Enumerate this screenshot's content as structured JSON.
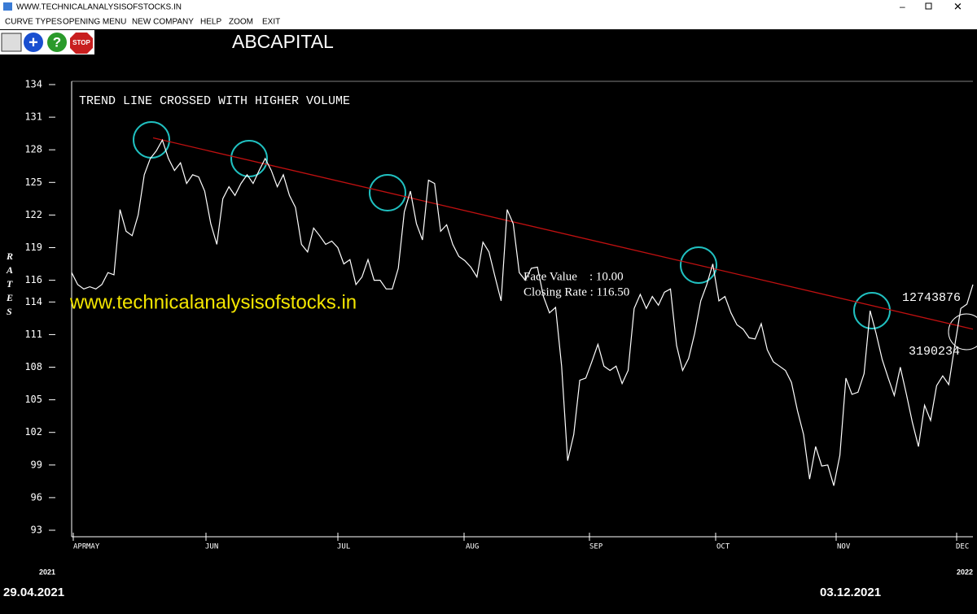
{
  "window": {
    "title": "WWW.TECHNICALANALYSISOFSTOCKS.IN"
  },
  "menu": [
    "CURVE TYPES",
    "OPENING MENU",
    "NEW COMPANY",
    "HELP",
    "ZOOM",
    "EXIT"
  ],
  "chart_data": {
    "type": "line",
    "title": "ABCAPITAL",
    "annotation": "TREND LINE CROSSED WITH HIGHER VOLUME",
    "ylabel": "RATES",
    "ylim": [
      93,
      134
    ],
    "yticks": [
      134,
      131,
      128,
      125,
      122,
      119,
      116,
      114,
      111,
      108,
      105,
      102,
      99,
      96,
      93
    ],
    "x_labels": [
      "APR",
      "MAY",
      "JUN",
      "JUL",
      "AUG",
      "SEP",
      "OCT",
      "NOV",
      "DEC"
    ],
    "color": "#ffffff",
    "values": [
      116.7,
      115.6,
      115.2,
      115.4,
      115.2,
      115.6,
      116.7,
      116.5,
      122.5,
      120.5,
      120.1,
      122.0,
      125.7,
      127.2,
      127.9,
      128.9,
      127.2,
      126.1,
      126.8,
      124.9,
      125.7,
      125.5,
      124.2,
      121.2,
      119.3,
      123.5,
      124.6,
      123.8,
      124.9,
      125.7,
      124.9,
      126.1,
      127.2,
      126.1,
      124.6,
      125.7,
      123.8,
      122.7,
      119.3,
      118.6,
      120.8,
      120.1,
      119.3,
      119.6,
      119.0,
      117.5,
      117.9,
      115.6,
      116.3,
      117.9,
      116.0,
      116.0,
      115.2,
      115.2,
      117.1,
      122.3,
      124.2,
      121.2,
      119.7,
      125.2,
      124.9,
      120.5,
      121.1,
      119.3,
      118.2,
      117.8,
      117.2,
      116.3,
      119.5,
      118.6,
      116.3,
      114.1,
      122.5,
      121.2,
      116.7,
      116.0,
      117.1,
      117.2,
      114.5,
      113.0,
      113.5,
      108.1,
      99.4,
      101.8,
      106.8,
      107.0,
      108.5,
      110.1,
      108.1,
      107.7,
      108.1,
      106.5,
      107.7,
      113.4,
      114.7,
      113.4,
      114.5,
      113.7,
      114.9,
      115.2,
      110.0,
      107.7,
      108.8,
      111.1,
      114.1,
      115.6,
      117.5,
      114.1,
      114.5,
      113.0,
      111.9,
      111.5,
      110.7,
      110.6,
      112.0,
      109.6,
      108.5,
      108.1,
      107.7,
      106.6,
      104.0,
      101.8,
      97.7,
      100.7,
      98.9,
      99.0,
      97.1,
      99.9,
      107.0,
      105.5,
      105.7,
      107.4,
      113.2,
      111.1,
      108.7,
      107.0,
      105.4,
      108.0,
      105.5,
      102.9,
      100.7,
      104.5,
      103.1,
      106.3,
      107.2,
      106.4,
      110.0,
      113.4,
      113.8,
      115.6
    ],
    "trend_line": {
      "values": [
        129.1,
        111.5
      ],
      "color": "#c01010"
    },
    "info": [
      "Face Value    : 10.00",
      "Closing Rate : 116.50"
    ],
    "volume_labels": [
      12743876,
      3190234
    ],
    "watermark": "www.technicalanalysisofstocks.in",
    "year_start": "2021",
    "year_end": "2022",
    "start_date": "29.04.2021",
    "end_date": "03.12.2021"
  }
}
